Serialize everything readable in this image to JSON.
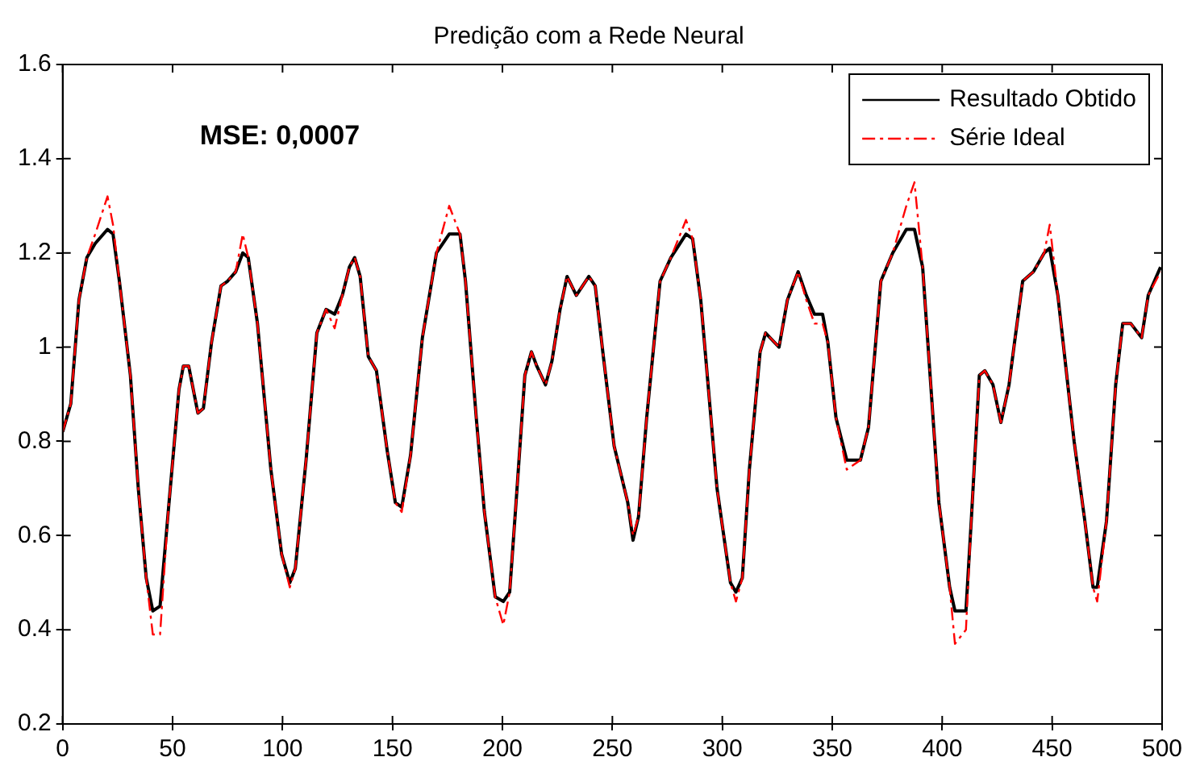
{
  "chart_data": {
    "type": "line",
    "title": "Predição com a Rede Neural",
    "annotations": [
      "MSE: 0,0007"
    ],
    "x": [
      0,
      3.7,
      7.4,
      11,
      14.8,
      20.4,
      22.9,
      25.8,
      30.8,
      34.4,
      38,
      41,
      44.3,
      48,
      52.9,
      54.9,
      57.3,
      61.5,
      64,
      67.7,
      72,
      75,
      78.7,
      81.9,
      84.4,
      88.6,
      94.7,
      99.6,
      103.3,
      105.8,
      110.7,
      115.6,
      119.8,
      123.7,
      127.2,
      130.4,
      132.8,
      135.3,
      139,
      142.7,
      147.6,
      151.3,
      154.2,
      158.2,
      163.6,
      170,
      175.8,
      180.7,
      183.2,
      188.1,
      191.8,
      196.7,
      200.4,
      203.3,
      206.5,
      210.2,
      213.2,
      215.6,
      219.6,
      222.5,
      226.2,
      229.4,
      233.6,
      239.3,
      242.2,
      245.9,
      250.8,
      257,
      259.4,
      261.9,
      265.6,
      271.7,
      276.6,
      283.5,
      286.5,
      290.2,
      297.6,
      303.7,
      306.2,
      309.1,
      312.3,
      317.2,
      319.7,
      325.8,
      329.6,
      334.5,
      338.2,
      341.9,
      345.6,
      348,
      351.7,
      356.6,
      362.8,
      366.5,
      372.1,
      377.5,
      383.7,
      387.4,
      391.1,
      394.8,
      398.5,
      403.4,
      405.8,
      410.8,
      413.2,
      416.9,
      419.4,
      423.1,
      426.7,
      430.4,
      432.9,
      436.6,
      441.5,
      446.4,
      448.9,
      452.6,
      460,
      464.9,
      468.6,
      470.5,
      474.7,
      478.9,
      482.1,
      485.8,
      490.7,
      493.7,
      499.3
    ],
    "series": [
      {
        "name": "Resultado Obtido",
        "color": "#000000",
        "line_style": "solid",
        "values": [
          0.82,
          0.88,
          1.1,
          1.19,
          1.22,
          1.25,
          1.24,
          1.14,
          0.94,
          0.7,
          0.51,
          0.44,
          0.45,
          0.65,
          0.91,
          0.96,
          0.96,
          0.86,
          0.87,
          1.01,
          1.13,
          1.14,
          1.16,
          1.2,
          1.19,
          1.05,
          0.74,
          0.56,
          0.5,
          0.53,
          0.76,
          1.03,
          1.08,
          1.07,
          1.11,
          1.17,
          1.19,
          1.15,
          0.98,
          0.95,
          0.78,
          0.67,
          0.66,
          0.77,
          1.02,
          1.2,
          1.24,
          1.24,
          1.14,
          0.85,
          0.65,
          0.47,
          0.46,
          0.48,
          0.69,
          0.94,
          0.99,
          0.96,
          0.92,
          0.97,
          1.08,
          1.15,
          1.11,
          1.15,
          1.13,
          0.98,
          0.79,
          0.67,
          0.59,
          0.64,
          0.85,
          1.14,
          1.19,
          1.24,
          1.23,
          1.1,
          0.7,
          0.5,
          0.48,
          0.51,
          0.74,
          0.99,
          1.03,
          1.0,
          1.1,
          1.16,
          1.11,
          1.07,
          1.07,
          1.01,
          0.85,
          0.76,
          0.76,
          0.83,
          1.14,
          1.2,
          1.25,
          1.25,
          1.17,
          0.92,
          0.67,
          0.49,
          0.44,
          0.44,
          0.63,
          0.94,
          0.95,
          0.92,
          0.84,
          0.92,
          1.01,
          1.14,
          1.16,
          1.2,
          1.21,
          1.11,
          0.8,
          0.63,
          0.49,
          0.49,
          0.63,
          0.92,
          1.05,
          1.05,
          1.02,
          1.11,
          1.17
        ]
      },
      {
        "name": "Série Ideal",
        "color": "#ff0000",
        "line_style": "dashed",
        "values": [
          0.82,
          0.88,
          1.1,
          1.19,
          1.24,
          1.32,
          1.26,
          1.14,
          0.94,
          0.7,
          0.51,
          0.39,
          0.39,
          0.65,
          0.91,
          0.96,
          0.96,
          0.86,
          0.87,
          1.01,
          1.13,
          1.14,
          1.16,
          1.24,
          1.19,
          1.05,
          0.74,
          0.56,
          0.49,
          0.53,
          0.76,
          1.03,
          1.08,
          1.04,
          1.11,
          1.17,
          1.19,
          1.15,
          0.98,
          0.95,
          0.78,
          0.67,
          0.65,
          0.77,
          1.02,
          1.2,
          1.3,
          1.24,
          1.14,
          0.85,
          0.65,
          0.47,
          0.41,
          0.48,
          0.69,
          0.94,
          0.99,
          0.96,
          0.92,
          0.97,
          1.08,
          1.15,
          1.11,
          1.15,
          1.13,
          0.98,
          0.79,
          0.67,
          0.6,
          0.64,
          0.85,
          1.14,
          1.19,
          1.27,
          1.23,
          1.1,
          0.7,
          0.5,
          0.46,
          0.51,
          0.74,
          0.99,
          1.03,
          1.0,
          1.1,
          1.16,
          1.1,
          1.05,
          1.05,
          1.01,
          0.85,
          0.74,
          0.76,
          0.83,
          1.14,
          1.2,
          1.3,
          1.35,
          1.17,
          0.92,
          0.67,
          0.49,
          0.37,
          0.4,
          0.63,
          0.94,
          0.95,
          0.92,
          0.84,
          0.92,
          1.01,
          1.14,
          1.16,
          1.2,
          1.26,
          1.11,
          0.8,
          0.63,
          0.49,
          0.46,
          0.63,
          0.92,
          1.05,
          1.05,
          1.02,
          1.11,
          1.16
        ]
      }
    ],
    "xlim": [
      0,
      500
    ],
    "xticks": [
      0,
      50,
      100,
      150,
      200,
      250,
      300,
      350,
      400,
      450,
      500
    ],
    "ylim": [
      0.2,
      1.6
    ],
    "yticks": [
      0.2,
      0.4,
      0.6,
      0.8,
      1,
      1.2,
      1.4,
      1.6
    ],
    "grid": false,
    "legend": "top right",
    "marker": "none"
  }
}
